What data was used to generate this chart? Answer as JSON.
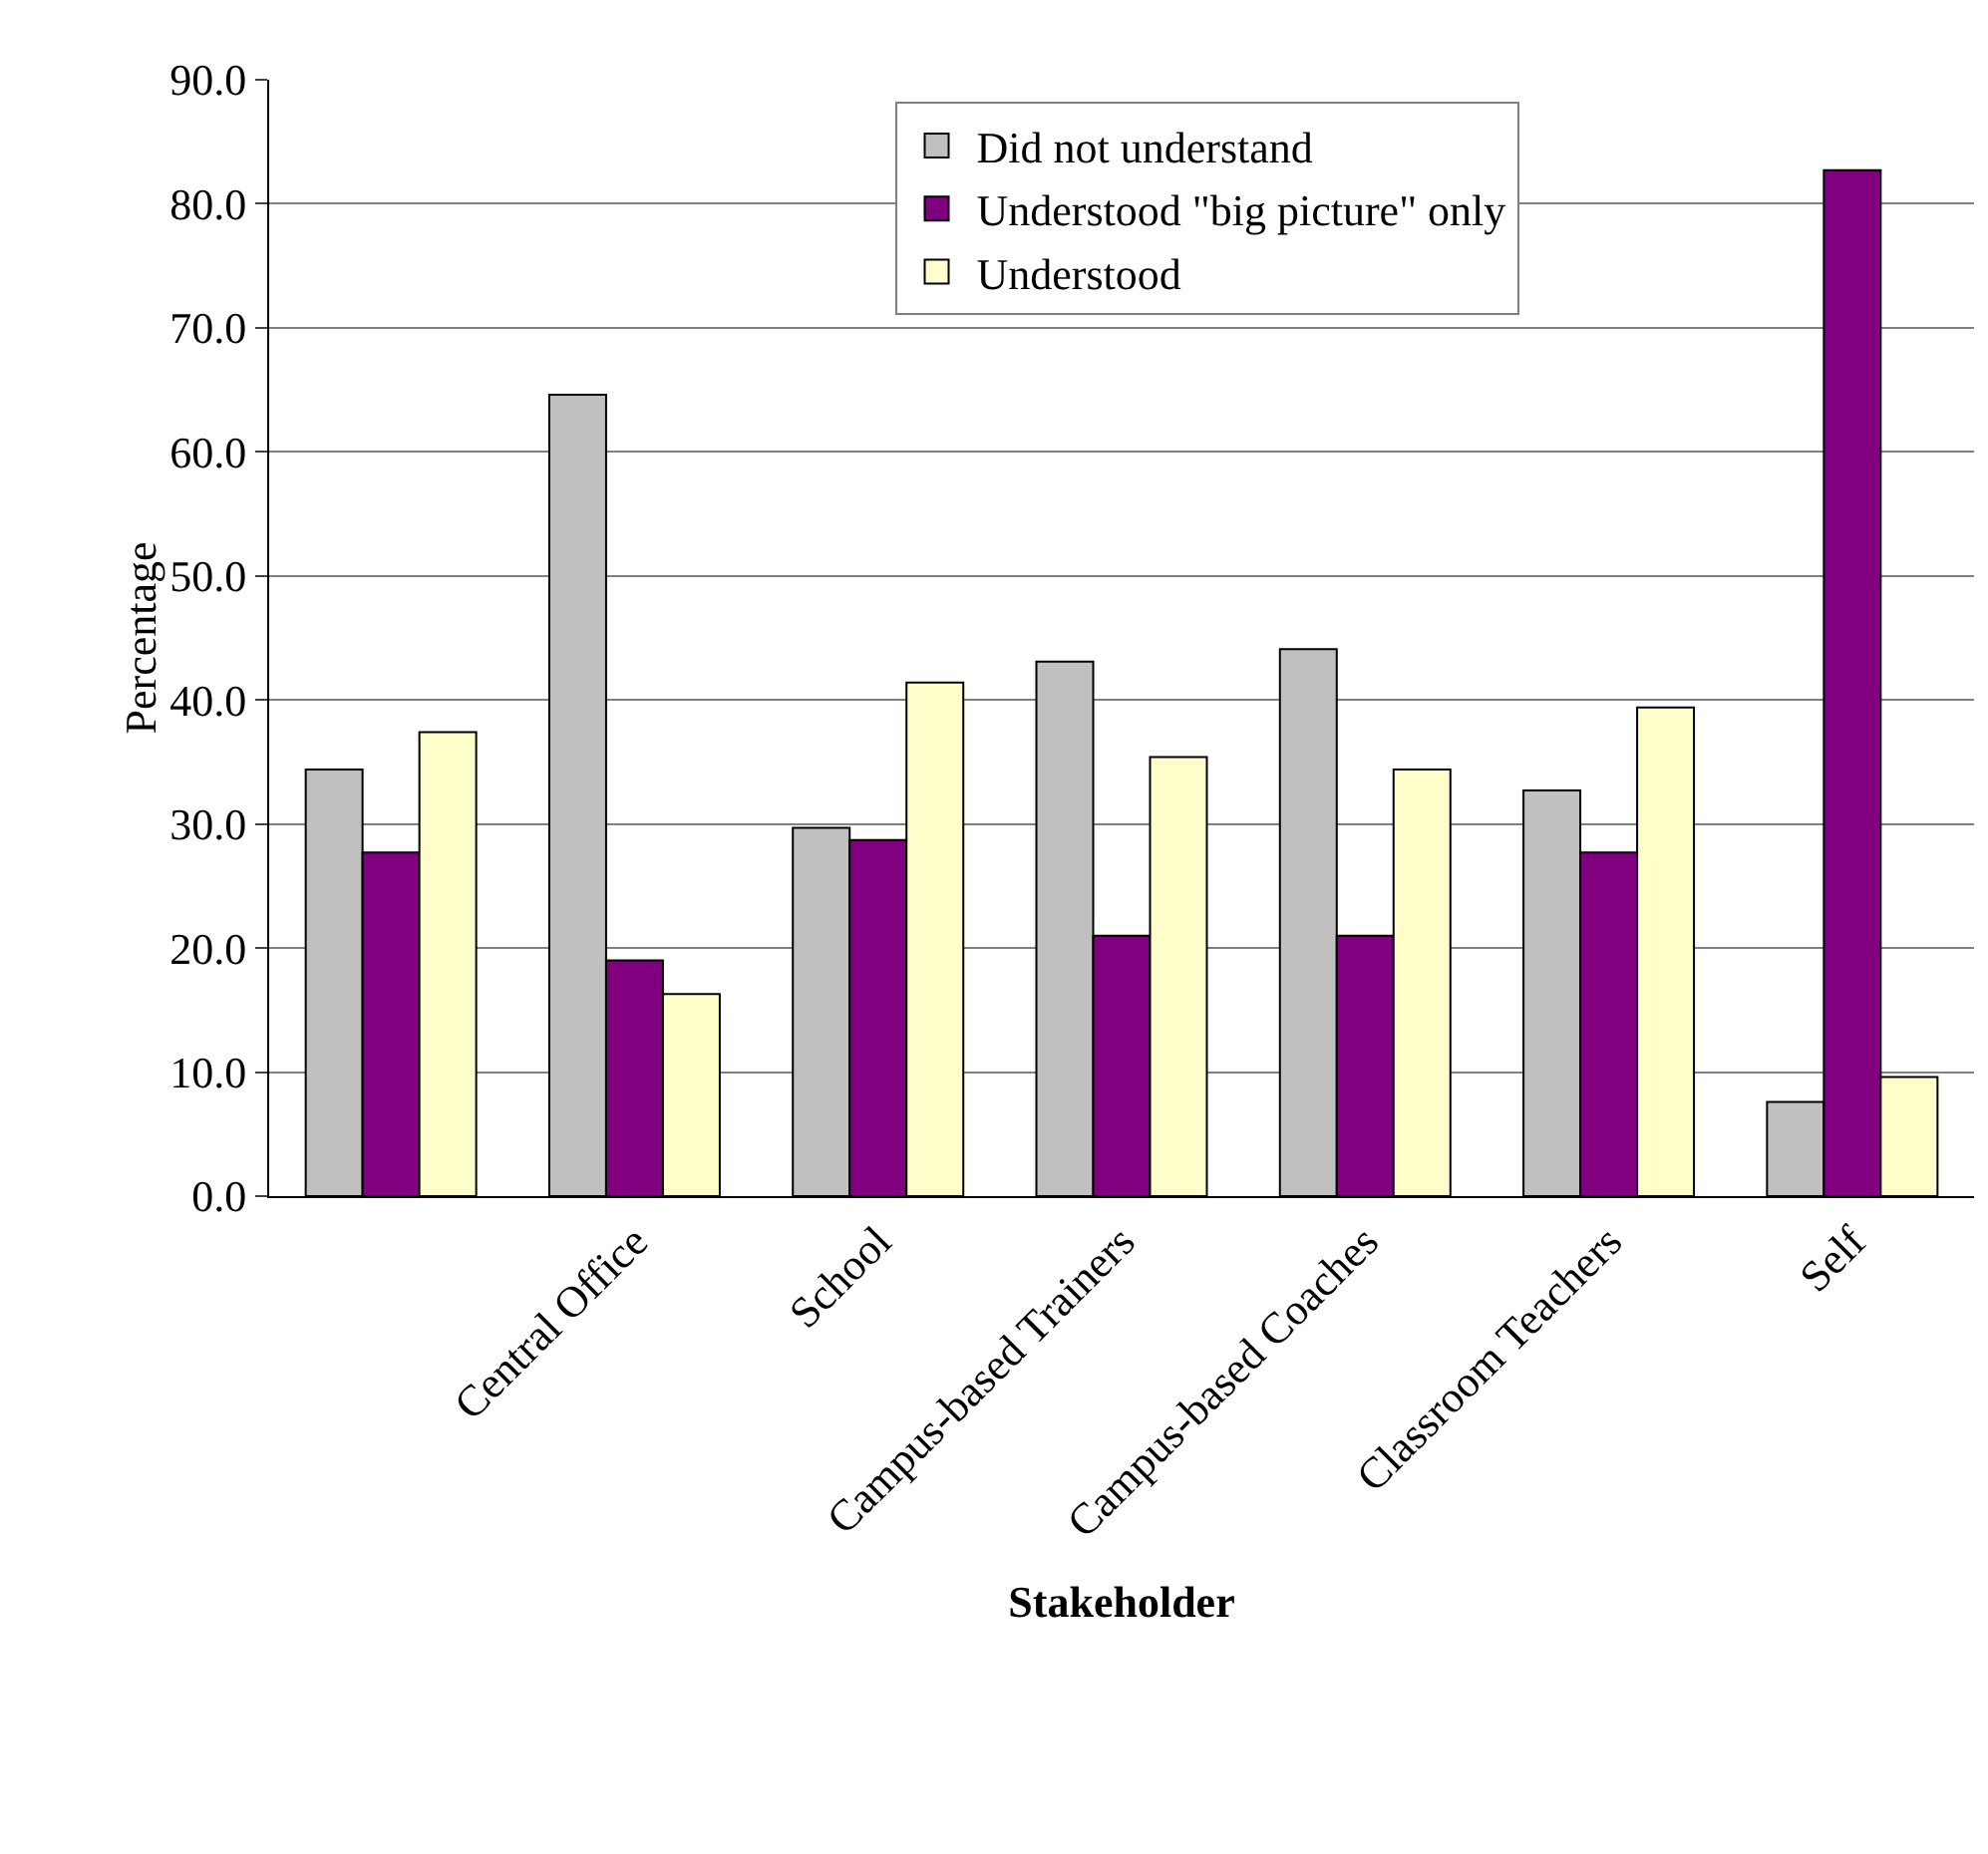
{
  "chart_data": {
    "type": "bar",
    "xlabel": "Stakeholder",
    "ylabel": "Percentage",
    "categories": [
      null,
      "Central Office",
      "School",
      "Campus-based Trainers",
      "Campus-based Coaches",
      "Classroom Teachers",
      "Self"
    ],
    "series": [
      {
        "name": "Did not understand",
        "color": "#c0c0c0",
        "values": [
          34.4,
          64.6,
          29.7,
          43.1,
          44.1,
          32.7,
          7.6
        ]
      },
      {
        "name": "Understood \"big picture\" only",
        "color": "#800080",
        "values": [
          27.7,
          19.0,
          28.7,
          21.0,
          21.0,
          27.7,
          82.7
        ]
      },
      {
        "name": "Understood",
        "color": "#ffffcc",
        "values": [
          37.4,
          16.3,
          41.4,
          35.4,
          34.4,
          39.4,
          9.6
        ]
      }
    ],
    "ylim": [
      0,
      90
    ],
    "yticks": [
      {
        "value": 0,
        "label": "0.0"
      },
      {
        "value": 10,
        "label": "10.0"
      },
      {
        "value": 20,
        "label": "20.0"
      },
      {
        "value": 30,
        "label": "30.0"
      },
      {
        "value": 40,
        "label": "40.0"
      },
      {
        "value": 50,
        "label": "50.0"
      },
      {
        "value": 60,
        "label": "60.0"
      },
      {
        "value": 70,
        "label": "70.0"
      },
      {
        "value": 80,
        "label": "80.0"
      },
      {
        "value": 90,
        "label": "90.0"
      }
    ],
    "grid": "y",
    "legend": "top"
  }
}
